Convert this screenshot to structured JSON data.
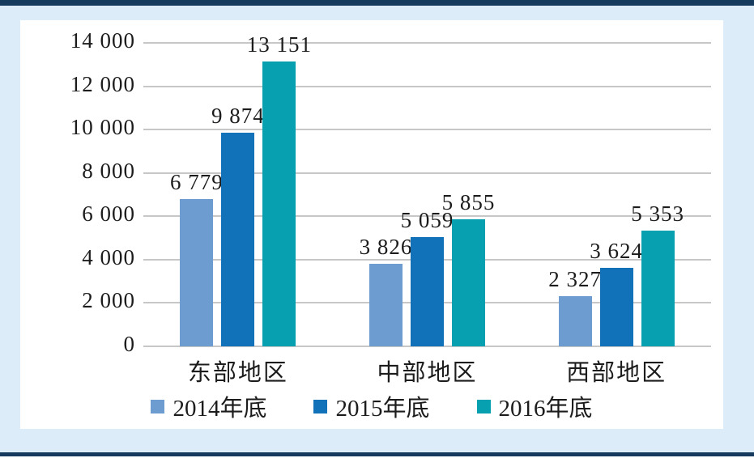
{
  "frame": {
    "background_color": "#dcedf9",
    "border_color": "#153a5e",
    "panel_color": "#ffffff",
    "text_color": "#1c1c1c",
    "gridline_color": "#c7c7c7"
  },
  "chart_data": {
    "type": "bar",
    "title": "",
    "xlabel": "",
    "ylabel": "",
    "categories": [
      "东部地区",
      "中部地区",
      "西部地区"
    ],
    "series": [
      {
        "name": "2014年底",
        "color": "#6d9cd1",
        "values": [
          6779,
          3826,
          2327
        ],
        "labels": [
          "6 779",
          "3 826",
          "2 327"
        ]
      },
      {
        "name": "2015年底",
        "color": "#1172ba",
        "values": [
          9874,
          5059,
          3624
        ],
        "labels": [
          "9 874",
          "5 059",
          "3 624"
        ]
      },
      {
        "name": "2016年底",
        "color": "#06a0b0",
        "values": [
          13151,
          5855,
          5353
        ],
        "labels": [
          "13 151",
          "5 855",
          "5 353"
        ]
      }
    ],
    "ylim": [
      0,
      14000
    ],
    "yticks": [
      {
        "value": 0,
        "label": "0"
      },
      {
        "value": 2000,
        "label": "2 000"
      },
      {
        "value": 4000,
        "label": "4 000"
      },
      {
        "value": 6000,
        "label": "6 000"
      },
      {
        "value": 8000,
        "label": "8 000"
      },
      {
        "value": 10000,
        "label": "10 000"
      },
      {
        "value": 12000,
        "label": "12 000"
      },
      {
        "value": 14000,
        "label": "14 000"
      }
    ],
    "grid": true,
    "legend_position": "bottom"
  }
}
